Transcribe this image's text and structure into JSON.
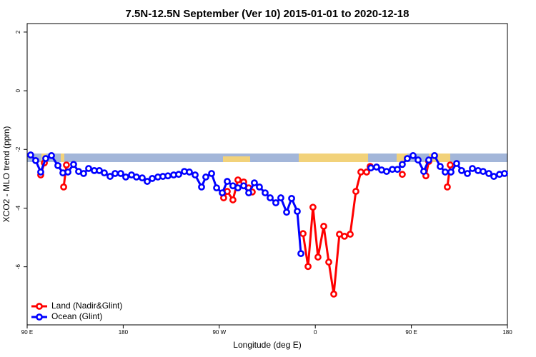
{
  "chart_data": {
    "type": "line",
    "title": "7.5N-12.5N September (Ver 10)   2015-01-01 to 2020-12-18",
    "x_label": "Longitude (deg E)",
    "y_label": "XCO2 - MLO trend (ppm)",
    "xlim": [
      90,
      540
    ],
    "xticks": [
      {
        "value": 90,
        "label": "90 E"
      },
      {
        "value": 180,
        "label": "180"
      },
      {
        "value": 270,
        "label": "90 W"
      },
      {
        "value": 360,
        "label": "0"
      },
      {
        "value": 450,
        "label": "90 E"
      },
      {
        "value": 540,
        "label": "180"
      }
    ],
    "ylim": [
      -7.98,
      2.29
    ],
    "yticks": [
      2,
      0,
      -2,
      -4,
      -6
    ],
    "legend": "bottomleft",
    "series": [
      {
        "name": "Land (Nadir&Glint)",
        "color": "#ff0000",
        "x": [
          102.7,
          106.1,
          110,
          124.2,
          126.8,
          200,
          274.1,
          277.5,
          282.8,
          287.5,
          292.9,
          297.6,
          300.9,
          330,
          348.5,
          353.2,
          357.8,
          362.5,
          367.9,
          372.6,
          377.3,
          382.6,
          387.3,
          392.7,
          398.0,
          402.7,
          408.1,
          411.4,
          420,
          441.5,
          450,
          463.6,
          466.3,
          475,
          483.7,
          486.4
        ],
        "values": [
          -2.87,
          -2.46,
          null,
          -3.28,
          -2.53,
          null,
          -3.65,
          -3.43,
          -3.72,
          -3.04,
          -3.11,
          -3.31,
          -3.45,
          null,
          -4.87,
          -5.99,
          -3.97,
          -5.67,
          -4.62,
          -5.84,
          -6.93,
          -4.89,
          -4.96,
          -4.89,
          -3.43,
          -2.77,
          -2.77,
          -2.58,
          null,
          -2.85,
          null,
          -2.9,
          -2.41,
          null,
          -3.28,
          -2.53
        ]
      },
      {
        "name": "Ocean (Glint)",
        "color": "#0000ff",
        "x": [
          93.3,
          98.0,
          102.7,
          107.4,
          112.8,
          118.8,
          123.5,
          128.2,
          133.5,
          138.2,
          142.9,
          147.6,
          152.9,
          157.6,
          162.3,
          167.7,
          172.4,
          177.7,
          182.4,
          187.8,
          192.4,
          197.8,
          202.5,
          207.2,
          212.5,
          217.2,
          221.9,
          227.3,
          232.0,
          237.3,
          242.0,
          247.4,
          253.4,
          257.4,
          262.8,
          267.5,
          272.8,
          277.5,
          282.8,
          287.5,
          292.9,
          297.6,
          302.9,
          307.6,
          313.0,
          317.7,
          323.0,
          327.7,
          333.1,
          337.8,
          343.1,
          346.5,
          400,
          412.1,
          417.4,
          422.1,
          426.8,
          432.2,
          436.9,
          441.5,
          446.2,
          451.6,
          456.3,
          461.6,
          466.3,
          471.7,
          477.0,
          481.7,
          487.1,
          492.4,
          497.1,
          502.5,
          507.2,
          512.5,
          517.2,
          522.6,
          527.3,
          532.6,
          537.3
        ],
        "values": [
          -2.19,
          -2.38,
          -2.77,
          -2.31,
          -2.21,
          -2.55,
          -2.8,
          -2.77,
          -2.51,
          -2.75,
          -2.82,
          -2.65,
          -2.72,
          -2.72,
          -2.8,
          -2.92,
          -2.82,
          -2.82,
          -2.94,
          -2.87,
          -2.94,
          -2.97,
          -3.09,
          -2.99,
          -2.94,
          -2.92,
          -2.9,
          -2.87,
          -2.85,
          -2.75,
          -2.77,
          -2.87,
          -3.28,
          -2.94,
          -2.82,
          -3.31,
          -3.48,
          -3.09,
          -3.24,
          -3.31,
          -3.24,
          -3.48,
          -3.14,
          -3.28,
          -3.48,
          -3.65,
          -3.82,
          -3.65,
          -4.14,
          -3.67,
          -4.11,
          -5.55,
          null,
          -2.63,
          -2.6,
          -2.7,
          -2.75,
          -2.68,
          -2.68,
          -2.51,
          -2.31,
          -2.21,
          -2.36,
          -2.75,
          -2.36,
          -2.21,
          -2.58,
          -2.77,
          -2.77,
          -2.48,
          -2.72,
          -2.82,
          -2.65,
          -2.72,
          -2.75,
          -2.82,
          -2.92,
          -2.85,
          -2.82
        ]
      }
    ]
  }
}
